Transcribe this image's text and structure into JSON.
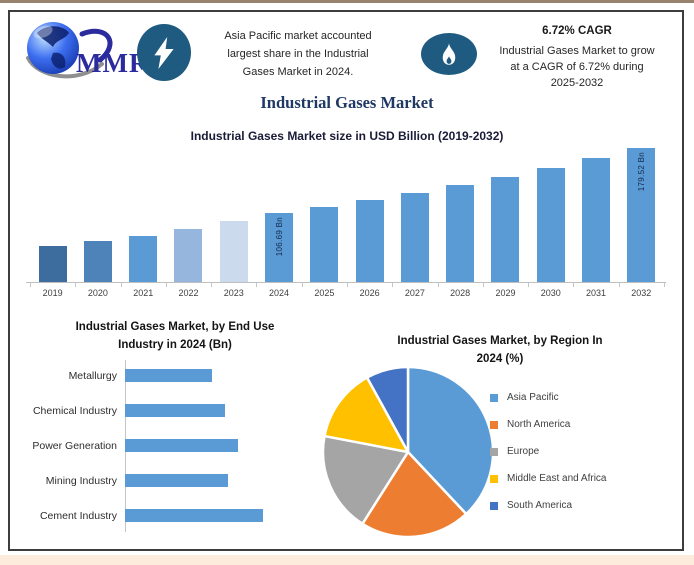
{
  "page": {
    "accent_blue": "#5b9bd5",
    "icon_blue": "#1f5b80",
    "box_border_color": "#3d3d3d",
    "top_strip_color": "#97826e",
    "bottom_strip_color": "#fdecdc"
  },
  "header": {
    "logo_text": "MMR",
    "callout_left": {
      "line1": "Asia Pacific market accounted",
      "line2": "largest share in the Industrial",
      "line3": "Gases Market in 2024."
    },
    "callout_right": {
      "title": "6.72% CAGR",
      "line1": "Industrial Gases Market to grow",
      "line2": "at a CAGR of 6.72% during",
      "line3": "2025-2032"
    }
  },
  "main_title": "Industrial Gases Market",
  "chart_data": [
    {
      "type": "bar",
      "title": "Industrial Gases Market size in USD Billion (2019-2032)",
      "categories": [
        "2019",
        "2020",
        "2021",
        "2022",
        "2023",
        "2024",
        "2025",
        "2026",
        "2027",
        "2028",
        "2029",
        "2030",
        "2031",
        "2032"
      ],
      "values": [
        70,
        75.5,
        81.5,
        89.5,
        98,
        106.69,
        113.86,
        121.51,
        129.68,
        138.39,
        147.69,
        157.62,
        168.21,
        179.52
      ],
      "unit": "USD Bn",
      "data_labels": {
        "2024": "106.69 Bn",
        "2032": "179.52 Bn"
      },
      "bar_colors": [
        "#3d6d9e",
        "#4d83b8",
        "#5b9bd5",
        "#96b6dd",
        "#ccdaee",
        "#5b9bd5",
        "#5b9bd5",
        "#5b9bd5",
        "#5b9bd5",
        "#5b9bd5",
        "#5b9bd5",
        "#5b9bd5",
        "#5b9bd5",
        "#5b9bd5"
      ],
      "ylim": [
        30,
        182
      ],
      "grid": false,
      "legend": "none"
    },
    {
      "type": "bar",
      "orientation": "horizontal",
      "title": "Industrial Gases Market, by End Use Industry in 2024 (Bn)",
      "title_lines": [
        "Industrial Gases Market, by End Use",
        "Industry in 2024 (Bn)"
      ],
      "categories": [
        "Metallurgy",
        "Chemical Industry",
        "Power Generation",
        "Mining Industry",
        "Cement Industry"
      ],
      "values": [
        19,
        21.7,
        24.6,
        22.4,
        30
      ],
      "bar_color": "#5b9bd5",
      "xlim": [
        0,
        32
      ],
      "grid": false,
      "legend": "none"
    },
    {
      "type": "pie",
      "title": "Industrial Gases Market, by Region In 2024 (%)",
      "title_lines": [
        "Industrial Gases Market, by Region In",
        "2024 (%)"
      ],
      "labels": [
        "Asia Pacific",
        "North America",
        "Europe",
        "Middle East and Africa",
        "South America"
      ],
      "values": [
        38,
        21,
        19,
        14,
        8
      ],
      "colors": [
        "#5b9bd5",
        "#ed7d31",
        "#a5a5a5",
        "#ffc000",
        "#4472c4"
      ],
      "start_angle_deg": 0,
      "direction": "clockwise",
      "legend_position": "right"
    }
  ]
}
